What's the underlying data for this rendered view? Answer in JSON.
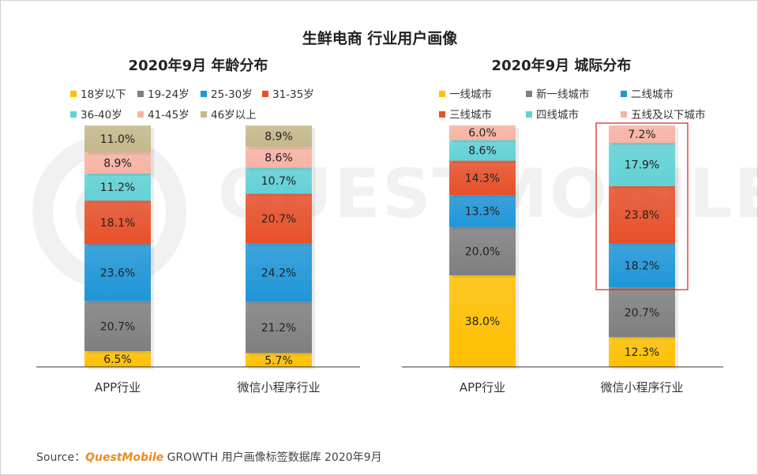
{
  "title": "生鲜电商 行业用户画像",
  "footer": {
    "prefix": "Source：",
    "brand": "QuestMobile",
    "suffix": "GROWTH 用户画像标签数据库 2020年9月"
  },
  "watermark": "QUESTMOBILE",
  "chart_data": [
    {
      "type": "bar",
      "stacked": true,
      "title": "2020年9月 年龄分布",
      "categories": [
        "APP行业",
        "微信小程序行业"
      ],
      "legend_position": "top",
      "series": [
        {
          "name": "18岁以下",
          "color": "#ffc000",
          "values": [
            6.5,
            5.7
          ],
          "labels": [
            "6.5%",
            "5.7%"
          ]
        },
        {
          "name": "19-24岁",
          "color": "#7f7f7f",
          "values": [
            20.7,
            21.2
          ],
          "labels": [
            "20.7%",
            "21.2%"
          ]
        },
        {
          "name": "25-30岁",
          "color": "#1f96d8",
          "values": [
            23.6,
            24.2
          ],
          "labels": [
            "23.6%",
            "24.2%"
          ]
        },
        {
          "name": "31-35岁",
          "color": "#e8502a",
          "values": [
            18.1,
            20.7
          ],
          "labels": [
            "18.1%",
            "20.7%"
          ]
        },
        {
          "name": "36-40岁",
          "color": "#61d2d6",
          "values": [
            11.2,
            10.7
          ],
          "labels": [
            "11.2%",
            "10.7%"
          ]
        },
        {
          "name": "41-45岁",
          "color": "#f8b3a3",
          "values": [
            8.9,
            8.6
          ],
          "labels": [
            "8.9%",
            "8.6%"
          ]
        },
        {
          "name": "46岁以上",
          "color": "#c5b88a",
          "values": [
            11.0,
            8.9
          ],
          "labels": [
            "11.0%",
            "8.9%"
          ]
        }
      ]
    },
    {
      "type": "bar",
      "stacked": true,
      "title": "2020年9月 城际分布",
      "categories": [
        "APP行业",
        "微信小程序行业"
      ],
      "legend_position": "top",
      "highlight": {
        "category_index": 1,
        "from_series": 2,
        "to_series": 5,
        "color": "#d9302c"
      },
      "series": [
        {
          "name": "一线城市",
          "color": "#ffc000",
          "values": [
            38.0,
            12.3
          ],
          "labels": [
            "38.0%",
            "12.3%"
          ]
        },
        {
          "name": "新一线城市",
          "color": "#7f7f7f",
          "values": [
            20.0,
            20.7
          ],
          "labels": [
            "20.0%",
            "20.7%"
          ]
        },
        {
          "name": "二线城市",
          "color": "#1f96d8",
          "values": [
            13.3,
            18.2
          ],
          "labels": [
            "13.3%",
            "18.2%"
          ]
        },
        {
          "name": "三线城市",
          "color": "#e8502a",
          "values": [
            14.3,
            23.8
          ],
          "labels": [
            "14.3%",
            "23.8%"
          ]
        },
        {
          "name": "四线城市",
          "color": "#61d2d6",
          "values": [
            8.6,
            17.9
          ],
          "labels": [
            "8.6%",
            "17.9%"
          ]
        },
        {
          "name": "五线及以下城市",
          "color": "#f8b3a3",
          "values": [
            6.0,
            7.2
          ],
          "labels": [
            "6.0%",
            "7.2%"
          ]
        }
      ]
    }
  ]
}
